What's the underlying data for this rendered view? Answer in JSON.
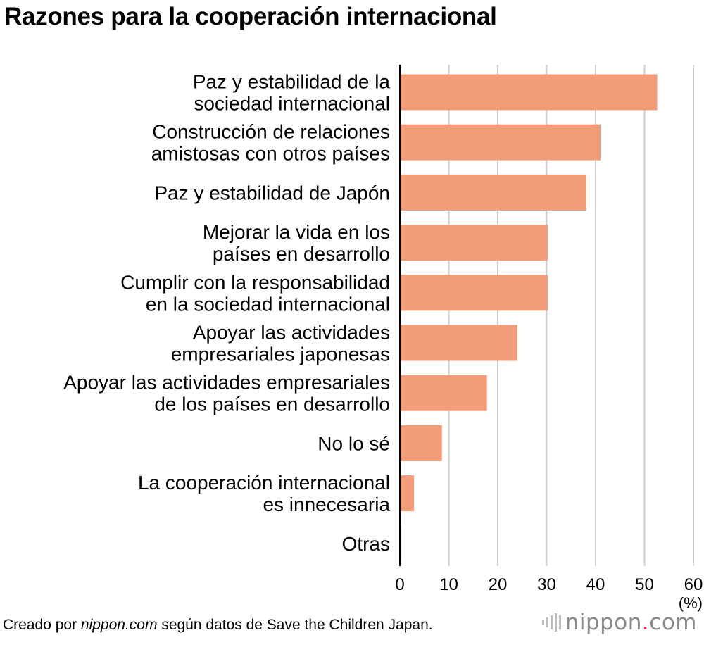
{
  "title": "Razones para la cooperación internacional",
  "chart_data": {
    "type": "bar",
    "orientation": "horizontal",
    "categories": [
      [
        "Paz y estabilidad de la",
        "sociedad internacional"
      ],
      [
        "Construcción de relaciones",
        "amistosas con otros países"
      ],
      [
        "Paz y estabilidad de Japón"
      ],
      [
        "Mejorar la vida en los",
        "países en desarrollo"
      ],
      [
        "Cumplir con la responsabilidad",
        "en la sociedad internacional"
      ],
      [
        "Apoyar las actividades",
        "empresariales japonesas"
      ],
      [
        "Apoyar las actividades empresariales",
        "de los países en desarrollo"
      ],
      [
        "No lo sé"
      ],
      [
        "La cooperación internacional",
        "es innecesaria"
      ],
      [
        "Otras"
      ]
    ],
    "values": [
      52.6,
      41.0,
      38.1,
      30.2,
      30.2,
      24.0,
      17.8,
      8.6,
      2.9,
      0.2
    ],
    "xlim": [
      0,
      60
    ],
    "ticks": [
      0,
      10,
      20,
      30,
      40,
      50,
      60
    ],
    "unit": "(%)",
    "grid": true,
    "bar_color": "#f29c7a"
  },
  "footer": {
    "prefix": "Creado por ",
    "source_site": "nippon.com",
    "suffix": " según datos de Save the Children Japan."
  },
  "brand": {
    "name": "nippon",
    "dot": ".",
    "tld": "com"
  }
}
